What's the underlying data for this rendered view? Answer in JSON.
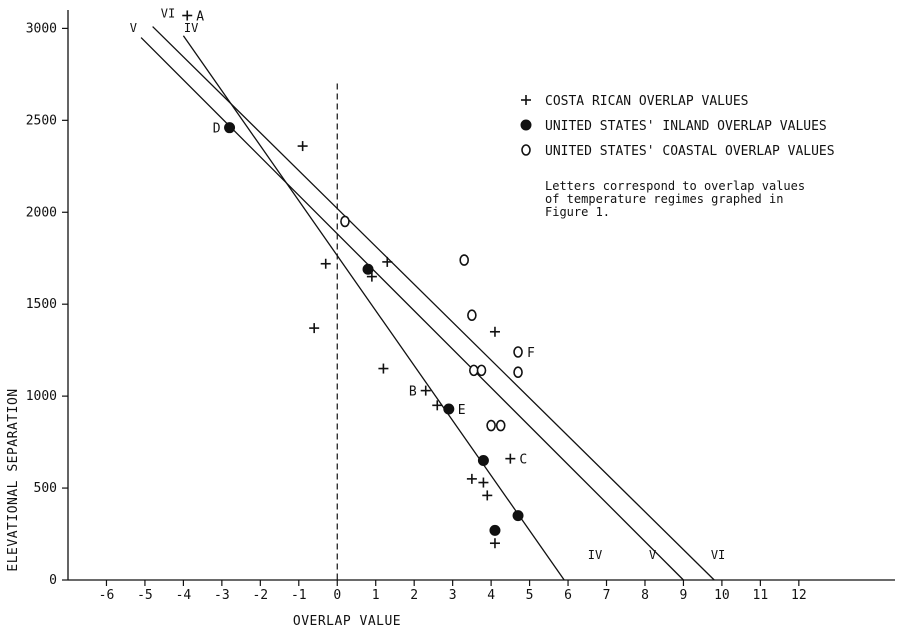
{
  "chart_data": {
    "type": "scatter",
    "xlabel": "OVERLAP VALUE",
    "ylabel": "ELEVATIONAL SEPARATION",
    "xlim": [
      -7,
      14.5
    ],
    "ylim": [
      0,
      3100
    ],
    "x_ticks": [
      -6,
      -5,
      -4,
      -3,
      -2,
      -1,
      0,
      1,
      2,
      3,
      4,
      5,
      6,
      7,
      8,
      9,
      10,
      11,
      12
    ],
    "y_ticks": [
      0,
      500,
      1000,
      1500,
      2000,
      2500,
      3000
    ],
    "zero_reference": {
      "x": 0,
      "y_top": 2700,
      "style": "dashed"
    },
    "legend": {
      "position": "top-right",
      "entries": [
        {
          "symbol": "plus",
          "label": "COSTA RICAN OVERLAP VALUES"
        },
        {
          "symbol": "filled-circle",
          "label": "UNITED STATES' INLAND OVERLAP VALUES"
        },
        {
          "symbol": "open-circle",
          "label": "UNITED STATES' COASTAL OVERLAP VALUES"
        }
      ]
    },
    "note": [
      "Letters correspond to overlap values",
      "of temperature regimes graphed in",
      "Figure 1."
    ],
    "series": [
      {
        "symbol": "plus",
        "points": [
          {
            "x": -3.9,
            "y": 3070,
            "label": "A"
          },
          {
            "x": -0.9,
            "y": 2360
          },
          {
            "x": -0.3,
            "y": 1720
          },
          {
            "x": 1.3,
            "y": 1730
          },
          {
            "x": 0.9,
            "y": 1650
          },
          {
            "x": -0.6,
            "y": 1370
          },
          {
            "x": 1.2,
            "y": 1150
          },
          {
            "x": 4.1,
            "y": 1350
          },
          {
            "x": 2.3,
            "y": 1030,
            "label": "B"
          },
          {
            "x": 2.6,
            "y": 950
          },
          {
            "x": 4.5,
            "y": 660,
            "label": "C"
          },
          {
            "x": 3.5,
            "y": 550
          },
          {
            "x": 3.8,
            "y": 530
          },
          {
            "x": 3.9,
            "y": 460
          },
          {
            "x": 4.1,
            "y": 200
          }
        ]
      },
      {
        "symbol": "filled-circle",
        "points": [
          {
            "x": -2.8,
            "y": 2460,
            "label": "D"
          },
          {
            "x": 0.8,
            "y": 1690
          },
          {
            "x": 2.9,
            "y": 930,
            "label": "E"
          },
          {
            "x": 3.8,
            "y": 650
          },
          {
            "x": 4.7,
            "y": 350
          },
          {
            "x": 4.1,
            "y": 270
          }
        ]
      },
      {
        "symbol": "open-circle",
        "points": [
          {
            "x": 0.2,
            "y": 1950
          },
          {
            "x": 3.3,
            "y": 1740
          },
          {
            "x": 3.5,
            "y": 1440
          },
          {
            "x": 4.7,
            "y": 1240,
            "label": "F"
          },
          {
            "x": 3.55,
            "y": 1140
          },
          {
            "x": 3.75,
            "y": 1140
          },
          {
            "x": 4.7,
            "y": 1130
          },
          {
            "x": 4.0,
            "y": 840
          },
          {
            "x": 4.25,
            "y": 840
          }
        ]
      }
    ],
    "regression_lines": [
      {
        "name": "IV",
        "from": [
          -4,
          2960
        ],
        "to": [
          5.9,
          0
        ]
      },
      {
        "name": "V",
        "from": [
          -5.1,
          2950
        ],
        "to": [
          9.0,
          0
        ]
      },
      {
        "name": "VI",
        "from": [
          -4.8,
          3010
        ],
        "to": [
          9.8,
          0
        ]
      }
    ],
    "line_labels": [
      {
        "text": "VI",
        "x": -4.4,
        "y": 3060
      },
      {
        "text": "V",
        "x": -5.3,
        "y": 2980
      },
      {
        "text": "IV",
        "x": -3.8,
        "y": 2980
      },
      {
        "text": "IV",
        "x": 6.7,
        "y": 115
      },
      {
        "text": "V",
        "x": 8.2,
        "y": 115
      },
      {
        "text": "VI",
        "x": 9.9,
        "y": 115
      }
    ]
  }
}
